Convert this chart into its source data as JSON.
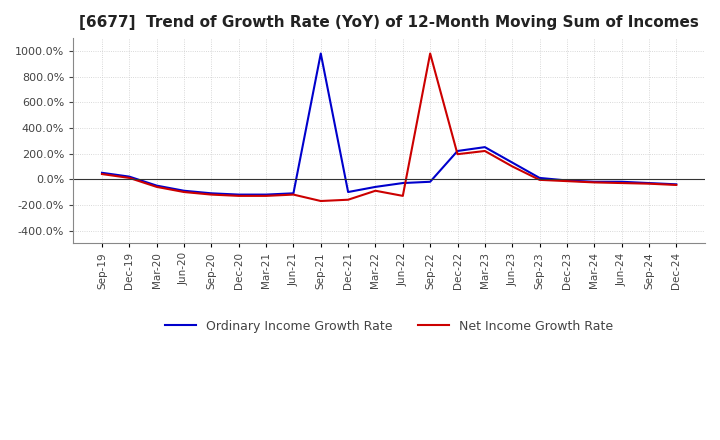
{
  "title": "[6677]  Trend of Growth Rate (YoY) of 12-Month Moving Sum of Incomes",
  "title_fontsize": 11,
  "ylim": [
    -500,
    1100
  ],
  "yticks": [
    -400,
    -200,
    0,
    200,
    400,
    600,
    800,
    1000
  ],
  "background_color": "#ffffff",
  "plot_bg_color": "#ffffff",
  "grid_color": "#cccccc",
  "ordinary_color": "#0000cc",
  "net_color": "#cc0000",
  "legend_labels": [
    "Ordinary Income Growth Rate",
    "Net Income Growth Rate"
  ],
  "x_labels": [
    "Sep-19",
    "Dec-19",
    "Mar-20",
    "Jun-20",
    "Sep-20",
    "Dec-20",
    "Mar-21",
    "Jun-21",
    "Sep-21",
    "Dec-21",
    "Mar-22",
    "Jun-22",
    "Sep-22",
    "Dec-22",
    "Mar-23",
    "Jun-23",
    "Sep-23",
    "Dec-23",
    "Mar-24",
    "Jun-24",
    "Sep-24",
    "Dec-24"
  ],
  "ordinary_data": [
    50,
    20,
    -50,
    -90,
    -110,
    -120,
    -120,
    -110,
    980,
    -100,
    -60,
    -30,
    -20,
    220,
    250,
    130,
    10,
    -10,
    -20,
    -20,
    -30,
    -40
  ],
  "net_data": [
    40,
    10,
    -60,
    -100,
    -120,
    -130,
    -130,
    -120,
    -170,
    -160,
    -90,
    -130,
    980,
    195,
    220,
    100,
    -5,
    -15,
    -25,
    -30,
    -35,
    -45
  ]
}
